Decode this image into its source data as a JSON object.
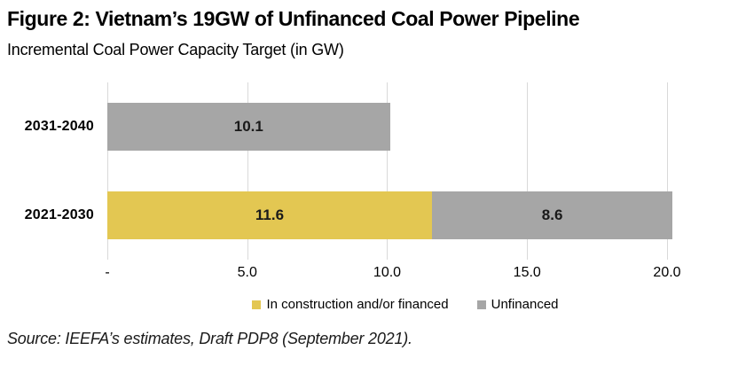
{
  "figure": {
    "title": "Figure 2: Vietnam’s 19GW of Unfinanced Coal Power Pipeline",
    "subtitle": "Incremental Coal Power Capacity Target (in GW)",
    "source": "Source: IEEFA’s estimates, Draft PDP8 (September 2021)."
  },
  "chart_data": {
    "type": "bar",
    "orientation": "horizontal",
    "stacked": true,
    "title": "Figure 2: Vietnam’s 19GW of Unfinanced Coal Power Pipeline",
    "subtitle": "Incremental Coal Power Capacity Target (in GW)",
    "categories": [
      "2031-2040",
      "2021-2030"
    ],
    "series": [
      {
        "name": "In construction and/or financed",
        "color": "#E3C752",
        "values": [
          0,
          11.6
        ]
      },
      {
        "name": "Unfinanced",
        "color": "#A6A6A6",
        "values": [
          10.1,
          8.6
        ]
      }
    ],
    "x_ticks": [
      {
        "value": 0,
        "label": "-"
      },
      {
        "value": 5,
        "label": "5.0"
      },
      {
        "value": 10,
        "label": "10.0"
      },
      {
        "value": 15,
        "label": "15.0"
      },
      {
        "value": 20,
        "label": "20.0"
      }
    ],
    "xlim": [
      0,
      21.3
    ],
    "grid": "vertical",
    "gridline_color": "#D9D9D9",
    "legend_position": "bottom",
    "bar_labels": {
      "2031-2040": [
        "10.1"
      ],
      "2021-2030": [
        "11.6",
        "8.6"
      ]
    }
  }
}
